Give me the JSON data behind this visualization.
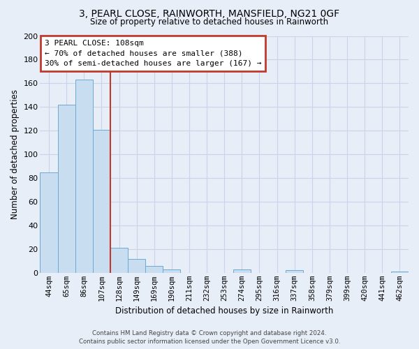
{
  "title": "3, PEARL CLOSE, RAINWORTH, MANSFIELD, NG21 0GF",
  "subtitle": "Size of property relative to detached houses in Rainworth",
  "xlabel": "Distribution of detached houses by size in Rainworth",
  "ylabel": "Number of detached properties",
  "bar_labels": [
    "44sqm",
    "65sqm",
    "86sqm",
    "107sqm",
    "128sqm",
    "149sqm",
    "169sqm",
    "190sqm",
    "211sqm",
    "232sqm",
    "253sqm",
    "274sqm",
    "295sqm",
    "316sqm",
    "337sqm",
    "358sqm",
    "379sqm",
    "399sqm",
    "420sqm",
    "441sqm",
    "462sqm"
  ],
  "bar_heights": [
    85,
    142,
    163,
    121,
    21,
    12,
    6,
    3,
    0,
    0,
    0,
    3,
    0,
    0,
    2,
    0,
    0,
    0,
    0,
    0,
    1
  ],
  "bar_color": "#c9ddf0",
  "bar_edge_color": "#6aaad4",
  "vline_color": "#c0392b",
  "annotation_title": "3 PEARL CLOSE: 108sqm",
  "annotation_line1": "← 70% of detached houses are smaller (388)",
  "annotation_line2": "30% of semi-detached houses are larger (167) →",
  "annotation_box_edgecolor": "#c0392b",
  "ylim": [
    0,
    200
  ],
  "yticks": [
    0,
    20,
    40,
    60,
    80,
    100,
    120,
    140,
    160,
    180,
    200
  ],
  "grid_color": "#c8d4e8",
  "background_color": "#e8eef8",
  "footer_line1": "Contains HM Land Registry data © Crown copyright and database right 2024.",
  "footer_line2": "Contains public sector information licensed under the Open Government Licence v3.0."
}
